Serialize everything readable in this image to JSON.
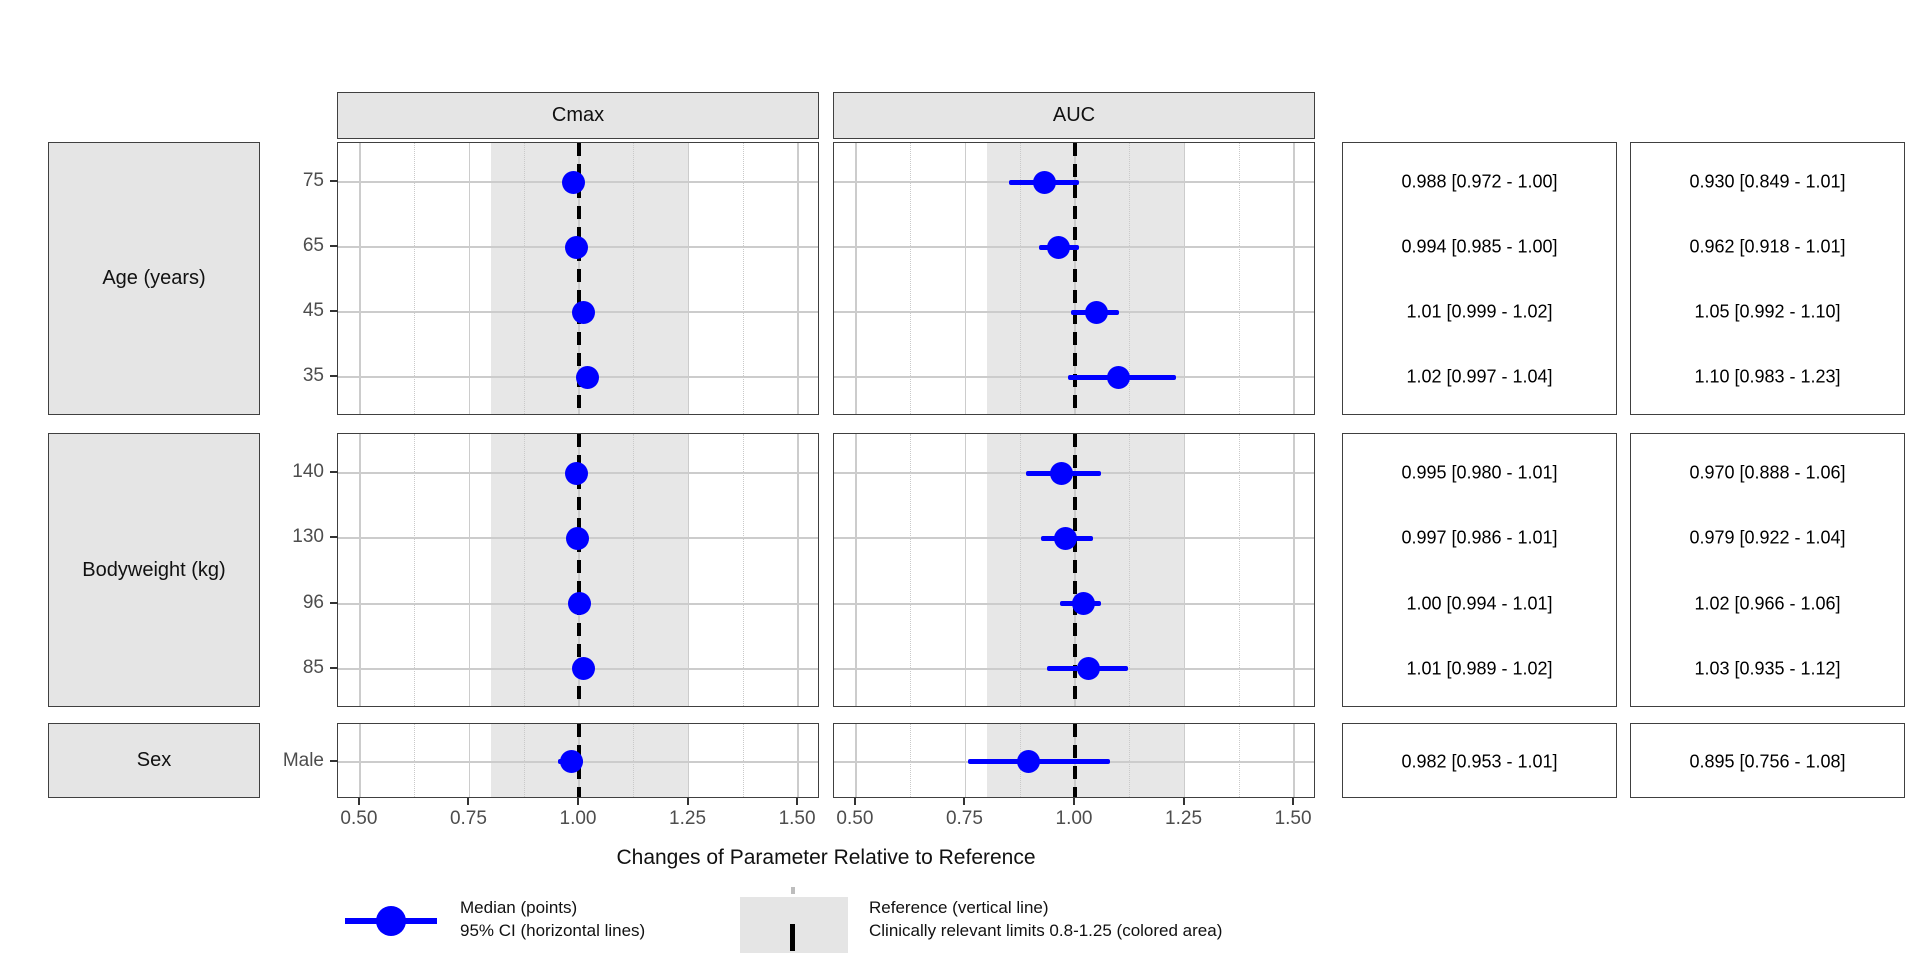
{
  "chart_data": {
    "type": "forest",
    "xlabel": "Changes of Parameter Relative to Reference",
    "x_tick_labels": [
      "0.50",
      "0.75",
      "1.00",
      "1.25",
      "1.50"
    ],
    "x_tick_values": [
      0.5,
      0.75,
      1.0,
      1.25,
      1.5
    ],
    "x_minor_gridlines": [
      0.625,
      0.875,
      1.125,
      1.375
    ],
    "xlim": [
      0.45,
      1.55
    ],
    "reference_line": 1.0,
    "clinically_relevant_limits": [
      0.8,
      1.25
    ],
    "parameters": [
      "Cmax",
      "AUC"
    ],
    "sections": [
      {
        "label": "Age (years)",
        "rows": [
          {
            "tick": "75",
            "cmax": {
              "median": 0.988,
              "lo": 0.972,
              "hi": 1.0,
              "label": "0.988 [0.972 - 1.00]"
            },
            "auc": {
              "median": 0.93,
              "lo": 0.849,
              "hi": 1.01,
              "label": "0.930 [0.849 - 1.01]"
            }
          },
          {
            "tick": "65",
            "cmax": {
              "median": 0.994,
              "lo": 0.985,
              "hi": 1.0,
              "label": "0.994 [0.985 - 1.00]"
            },
            "auc": {
              "median": 0.962,
              "lo": 0.918,
              "hi": 1.01,
              "label": "0.962 [0.918 - 1.01]"
            }
          },
          {
            "tick": "45",
            "cmax": {
              "median": 1.01,
              "lo": 0.999,
              "hi": 1.02,
              "label": "1.01 [0.999 - 1.02]"
            },
            "auc": {
              "median": 1.05,
              "lo": 0.992,
              "hi": 1.1,
              "label": "1.05 [0.992 - 1.10]"
            }
          },
          {
            "tick": "35",
            "cmax": {
              "median": 1.02,
              "lo": 0.997,
              "hi": 1.04,
              "label": "1.02 [0.997 - 1.04]"
            },
            "auc": {
              "median": 1.1,
              "lo": 0.983,
              "hi": 1.23,
              "label": "1.10 [0.983 - 1.23]"
            }
          }
        ]
      },
      {
        "label": "Bodyweight (kg)",
        "rows": [
          {
            "tick": "140",
            "cmax": {
              "median": 0.995,
              "lo": 0.98,
              "hi": 1.01,
              "label": "0.995 [0.980 - 1.01]"
            },
            "auc": {
              "median": 0.97,
              "lo": 0.888,
              "hi": 1.06,
              "label": "0.970 [0.888 - 1.06]"
            }
          },
          {
            "tick": "130",
            "cmax": {
              "median": 0.997,
              "lo": 0.986,
              "hi": 1.01,
              "label": "0.997 [0.986 - 1.01]"
            },
            "auc": {
              "median": 0.979,
              "lo": 0.922,
              "hi": 1.04,
              "label": "0.979 [0.922 - 1.04]"
            }
          },
          {
            "tick": "96",
            "cmax": {
              "median": 1.0,
              "lo": 0.994,
              "hi": 1.01,
              "label": "1.00 [0.994 - 1.01]"
            },
            "auc": {
              "median": 1.02,
              "lo": 0.966,
              "hi": 1.06,
              "label": "1.02 [0.966 - 1.06]"
            }
          },
          {
            "tick": "85",
            "cmax": {
              "median": 1.01,
              "lo": 0.989,
              "hi": 1.02,
              "label": "1.01 [0.989 - 1.02]"
            },
            "auc": {
              "median": 1.03,
              "lo": 0.935,
              "hi": 1.12,
              "label": "1.03 [0.935 - 1.12]"
            }
          }
        ]
      },
      {
        "label": "Sex",
        "rows": [
          {
            "tick": "Male",
            "cmax": {
              "median": 0.982,
              "lo": 0.953,
              "hi": 1.01,
              "label": "0.982 [0.953 - 1.01]"
            },
            "auc": {
              "median": 0.895,
              "lo": 0.756,
              "hi": 1.08,
              "label": "0.895 [0.756 - 1.08]"
            }
          }
        ]
      }
    ],
    "legend": [
      {
        "line1": "Median (points)",
        "line2": "95% CI (horizontal lines)"
      },
      {
        "line1": "Reference (vertical line)",
        "line2": "Clinically relevant limits 0.8-1.25 (colored area)"
      }
    ]
  },
  "colors": {
    "point_blue": "#0000ff",
    "strip_fill": "#e5e5e5",
    "band_fill": "#e7e7e7",
    "grid_major": "#cccccc",
    "grid_minor": "#c9c9c9",
    "panel_border": "#404040",
    "tick_text": "#4d4d4d",
    "reference_line": "#000000"
  }
}
